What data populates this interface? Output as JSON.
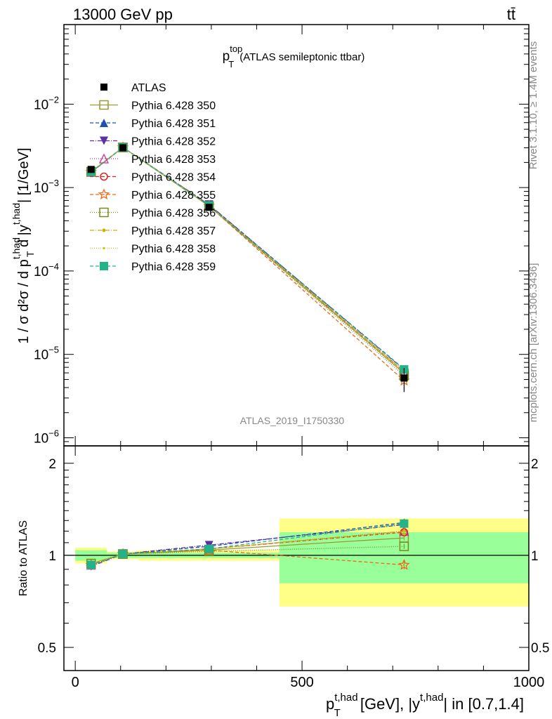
{
  "header": {
    "energy_label": "13000 GeV pp",
    "process_label": "tt̄"
  },
  "side_labels": {
    "rivet": "Rivet 3.1.10, ≥ 1.4M events",
    "mcplots": "mcplots.cern.ch [arXiv:1306.3436]"
  },
  "chart_data": {
    "type": "line",
    "title_main": "p",
    "title_sup": "top",
    "title_sub": "T",
    "title_suffix": "(ATLAS semileptonic ttbar)",
    "analysis_id": "ATLAS_2019_I1750330",
    "ylabel_main": "1 / σ d²σ / d p",
    "ylabel_sup": "t,had",
    "ylabel_sub": "T",
    "ylabel_mid": " d |y",
    "ylabel_sup2": "t,had",
    "ylabel_end": "| [1/GeV]",
    "ratio_ylabel": "Ratio to ATLAS",
    "xlabel_main": "p",
    "xlabel_sup": "t,had",
    "xlabel_sub": "T",
    "xlabel_mid": " [GeV], |y",
    "xlabel_sup2": "t,had",
    "xlabel_end": "| in [0.7,1.4]",
    "xlim": [
      -25,
      1000
    ],
    "ylim": [
      8e-07,
      0.09
    ],
    "ratio_ylim": [
      0.42,
      2.28
    ],
    "x_ticks": [
      0,
      500,
      1000
    ],
    "x_tick_labels": [
      "0",
      "500",
      "1000"
    ],
    "y_ticks": [
      1e-06,
      1e-05,
      0.0001,
      0.001,
      0.01
    ],
    "y_tick_base": [
      "10",
      "10",
      "10",
      "10",
      "10"
    ],
    "y_tick_exp": [
      "−6",
      "−5",
      "−4",
      "−3",
      "−2"
    ],
    "ratio_ticks": [
      0.5,
      1,
      2
    ],
    "ratio_tick_labels": [
      "0.5",
      "1",
      "2"
    ],
    "x": [
      35,
      105,
      295,
      725
    ],
    "bins": [
      [
        0,
        70
      ],
      [
        70,
        140
      ],
      [
        140,
        450
      ],
      [
        450,
        1000
      ]
    ],
    "data": {
      "name": "ATLAS",
      "values": [
        0.00165,
        0.003,
        0.00058,
        5.2e-06
      ],
      "band_stat": [
        0.04,
        0.02,
        0.02,
        0.19
      ],
      "band_total": [
        0.06,
        0.03,
        0.04,
        0.32
      ]
    },
    "series": [
      {
        "name": "Pythia 6.428 350",
        "color": "#999933",
        "dash": "",
        "marker": "square-open",
        "ratio": [
          0.94,
          1.01,
          1.04,
          1.14
        ],
        "ratio_err": [
          0.01,
          0.01,
          0.01,
          0.02
        ]
      },
      {
        "name": "Pythia 6.428 351",
        "color": "#1f4fb4",
        "dash": "5,3",
        "marker": "triangle-up",
        "ratio": [
          0.93,
          1.01,
          1.07,
          1.28
        ],
        "ratio_err": [
          0.01,
          0.01,
          0.01,
          0.03
        ]
      },
      {
        "name": "Pythia 6.428 352",
        "color": "#5b2fa8",
        "dash": "6,2,1,2",
        "marker": "triangle-down",
        "ratio": [
          0.92,
          1.01,
          1.08,
          1.26
        ],
        "ratio_err": [
          0.01,
          0.01,
          0.01,
          0.03
        ]
      },
      {
        "name": "Pythia 6.428 353",
        "color": "#cc3399",
        "dash": "1,2",
        "marker": "triangle-open",
        "ratio": [
          0.93,
          1.01,
          1.05,
          1.2
        ],
        "ratio_err": [
          0.01,
          0.01,
          0.01,
          0.03
        ]
      },
      {
        "name": "Pythia 6.428 354",
        "color": "#dd2222",
        "dash": "5,3",
        "marker": "circle-open",
        "ratio": [
          0.93,
          1.01,
          1.05,
          1.19
        ],
        "ratio_err": [
          0.01,
          0.01,
          0.01,
          0.03
        ]
      },
      {
        "name": "Pythia 6.428 355",
        "color": "#ee6a1a",
        "dash": "5,3",
        "marker": "star-open",
        "ratio": [
          0.93,
          1.01,
          1.04,
          0.93
        ],
        "ratio_err": [
          0.01,
          0.01,
          0.01,
          0.03
        ]
      },
      {
        "name": "Pythia 6.428 356",
        "color": "#7a8a1a",
        "dash": "1,2",
        "marker": "square-open",
        "ratio": [
          0.94,
          1.01,
          1.03,
          1.07
        ],
        "ratio_err": [
          0.01,
          0.01,
          0.01,
          0.02
        ]
      },
      {
        "name": "Pythia 6.428 357",
        "color": "#ccb000",
        "dash": "6,2,1,2",
        "marker": "dot",
        "ratio": [
          0.94,
          1.01,
          1.05,
          1.2
        ],
        "ratio_err": [
          0.01,
          0.01,
          0.01,
          0.03
        ]
      },
      {
        "name": "Pythia 6.428 358",
        "color": "#c8cc22",
        "dash": "1,2",
        "marker": "dot-small",
        "ratio": [
          0.94,
          1.01,
          1.05,
          1.19
        ],
        "ratio_err": [
          0.01,
          0.01,
          0.01,
          0.03
        ]
      },
      {
        "name": "Pythia 6.428 359",
        "color": "#22b38a",
        "dash": "5,3",
        "marker": "square-filled",
        "ratio": [
          0.93,
          1.01,
          1.05,
          1.27
        ],
        "ratio_err": [
          0.01,
          0.01,
          0.01,
          0.03
        ]
      }
    ]
  }
}
